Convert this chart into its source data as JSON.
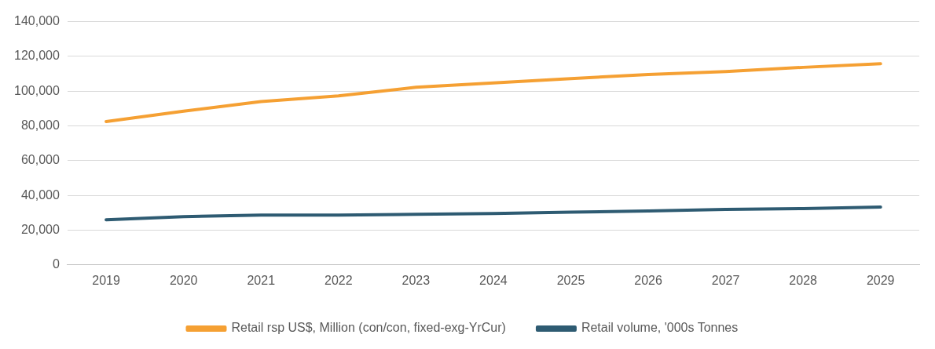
{
  "chart_data": {
    "type": "line",
    "categories": [
      "2019",
      "2020",
      "2021",
      "2022",
      "2023",
      "2024",
      "2025",
      "2026",
      "2027",
      "2028",
      "2029"
    ],
    "series": [
      {
        "name": "Retail rsp US$, Million (con/con, fixed-exg-YrCur)",
        "color": "#f5a033",
        "values": [
          82500,
          88500,
          94000,
          97300,
          102200,
          104700,
          107200,
          109600,
          111300,
          113700,
          115800
        ]
      },
      {
        "name": "Retail volume, '000s Tonnes",
        "color": "#2e5b72",
        "values": [
          26000,
          27800,
          28700,
          28700,
          29100,
          29600,
          30400,
          31000,
          32000,
          32400,
          33300
        ]
      }
    ],
    "ylim": [
      0,
      140000
    ],
    "yticks": [
      0,
      {
        "value": 20000,
        "label": "20,000"
      },
      {
        "value": 40000,
        "label": "40,000"
      },
      {
        "value": 60000,
        "label": "60,000"
      },
      {
        "value": 80000,
        "label": "80,000"
      },
      {
        "value": 100000,
        "label": "100,000"
      },
      {
        "value": 120000,
        "label": "120,000"
      },
      {
        "value": 140000,
        "label": "140,000"
      }
    ],
    "grid": "y",
    "legend": "bottom",
    "marker": "none",
    "line_style": "solid"
  }
}
